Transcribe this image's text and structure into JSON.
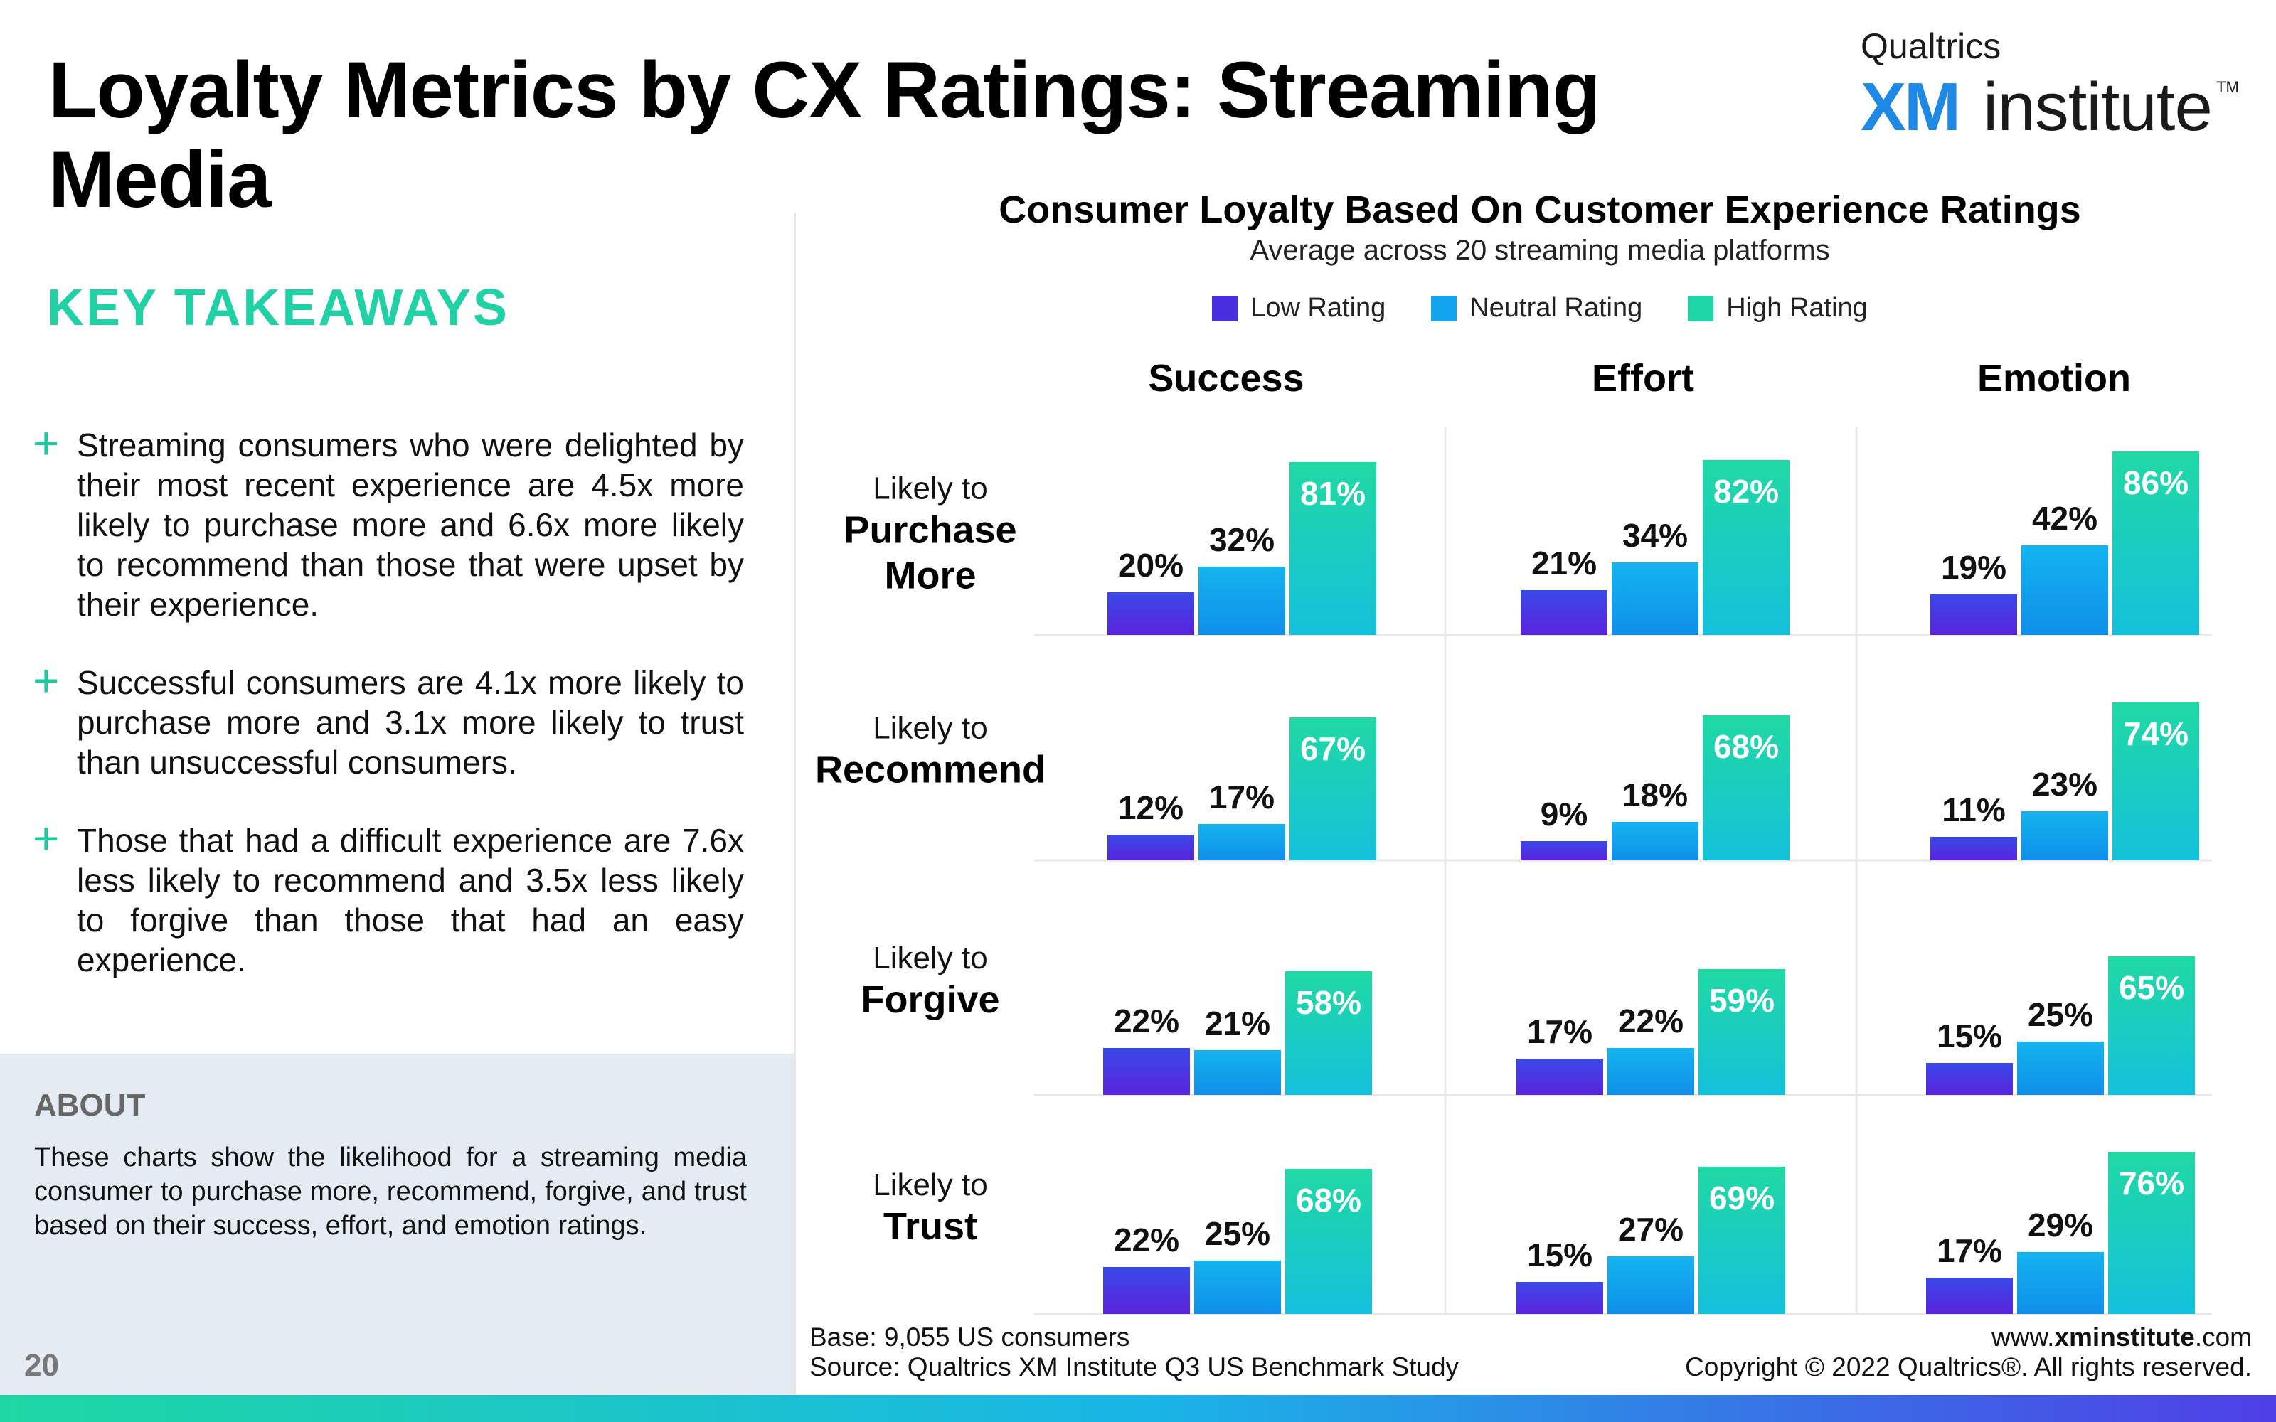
{
  "header": {
    "title": "Loyalty Metrics by CX Ratings: Streaming Media",
    "logo_top": "Qualtrics",
    "logo_xm": "XM",
    "logo_institute": "institute",
    "logo_tm": "TM"
  },
  "takeaways": {
    "heading": "KEY TAKEAWAYS",
    "items": [
      "Streaming consumers who were delighted by their most recent experience are 4.5x more likely to purchase more and 6.6x more likely to recommend than those that were upset by their experience.",
      "Successful consumers are 4.1x more likely to purchase more and 3.1x more likely to trust than unsuccessful consumers.",
      "Those that had a difficult experience are 7.6x less likely to recommend and 3.5x less likely to forgive than those that had an easy experience."
    ]
  },
  "about": {
    "heading": "ABOUT",
    "text": "These charts show the likelihood for a streaming media consumer to purchase more, recommend, forgive, and trust based on their success, effort, and emotion ratings."
  },
  "footer": {
    "page_number": "20",
    "base": "Base: 9,055 US consumers",
    "source": "Source: Qualtrics XM Institute Q3 US Benchmark Study",
    "website_prefix": "www.",
    "website_bold": "xminstitute",
    "website_suffix": ".com",
    "copyright": "Copyright © 2022 Qualtrics®. All rights reserved."
  },
  "colors": {
    "low": "#4a2fe0",
    "neutral": "#12a6ee",
    "high": "#1fd6a6",
    "accent": "#1fd1a5"
  },
  "chart_data": {
    "type": "bar",
    "title": "Consumer Loyalty Based On Customer Experience Ratings",
    "subtitle": "Average across 20 streaming media platforms",
    "legend": [
      "Low Rating",
      "Neutral Rating",
      "High Rating"
    ],
    "legend_position": "top",
    "columns": [
      "Success",
      "Effort",
      "Emotion"
    ],
    "rows": [
      {
        "prefix": "Likely to",
        "label": [
          "Purchase",
          "More"
        ]
      },
      {
        "prefix": "Likely to",
        "label": [
          "Recommend"
        ]
      },
      {
        "prefix": "Likely to",
        "label": [
          "Forgive"
        ]
      },
      {
        "prefix": "Likely to",
        "label": [
          "Trust"
        ]
      }
    ],
    "unit": "%",
    "ylim": [
      0,
      100
    ],
    "values": [
      [
        [
          20,
          32,
          81
        ],
        [
          21,
          34,
          82
        ],
        [
          19,
          42,
          86
        ]
      ],
      [
        [
          12,
          17,
          67
        ],
        [
          9,
          18,
          68
        ],
        [
          11,
          23,
          74
        ]
      ],
      [
        [
          22,
          21,
          58
        ],
        [
          17,
          22,
          59
        ],
        [
          15,
          25,
          65
        ]
      ],
      [
        [
          22,
          25,
          68
        ],
        [
          15,
          27,
          69
        ],
        [
          17,
          29,
          76
        ]
      ]
    ]
  }
}
